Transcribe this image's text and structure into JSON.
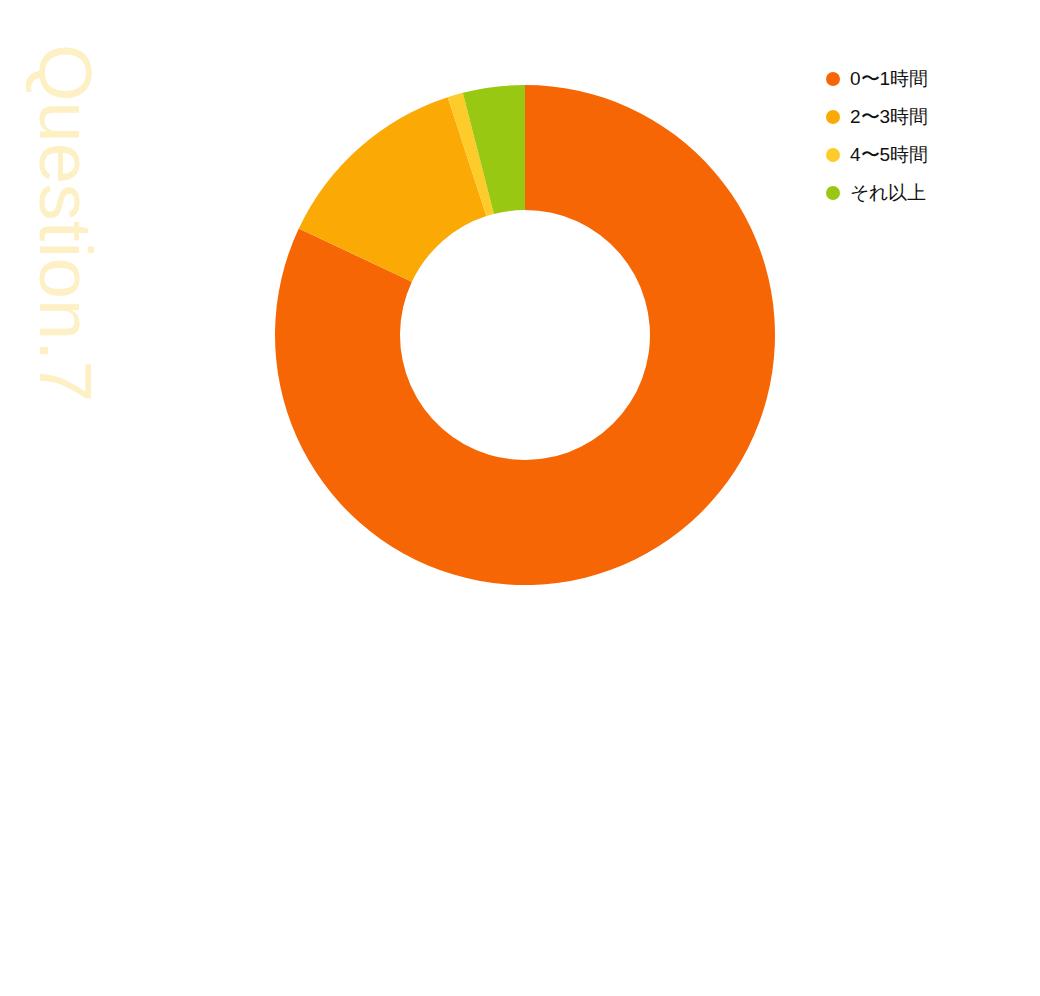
{
  "chart_data": {
    "type": "pie",
    "title": "Question.7",
    "categories": [
      "0〜1時間",
      "2〜3時間",
      "4〜5時間",
      "それ以上"
    ],
    "values": [
      82,
      13,
      1,
      4
    ],
    "colors": [
      "#f76604",
      "#fba904",
      "#fdcb2a",
      "#99c812"
    ],
    "legend": "top-right"
  }
}
